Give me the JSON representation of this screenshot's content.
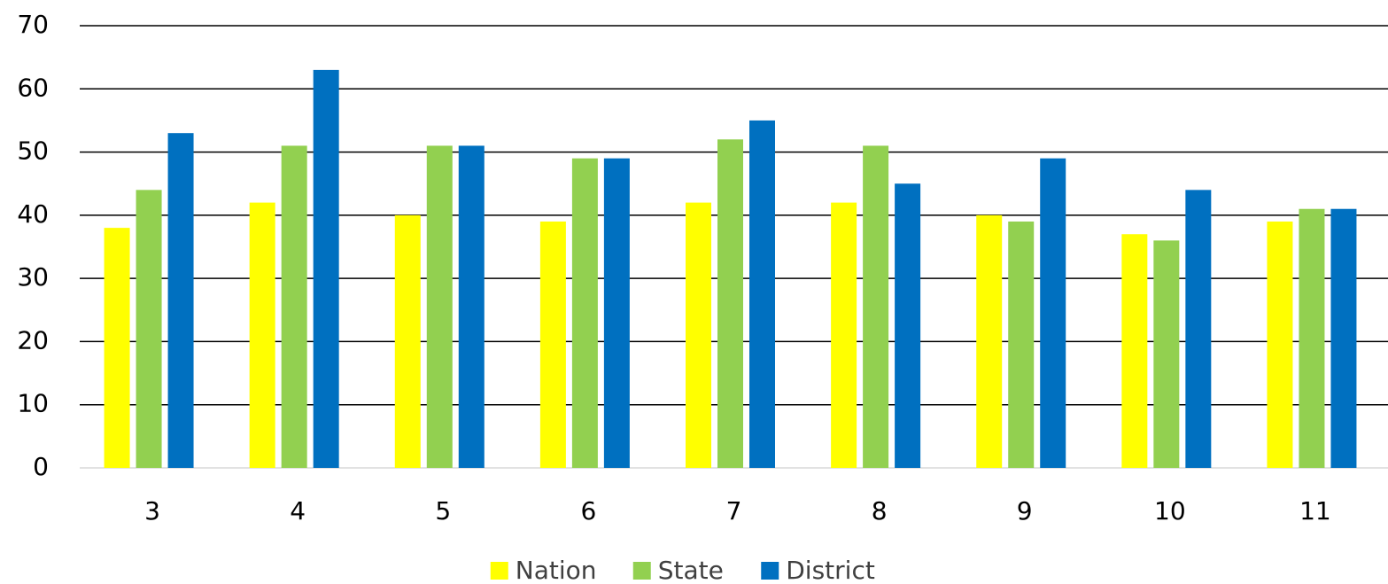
{
  "chart_data": {
    "type": "bar",
    "categories": [
      "3",
      "4",
      "5",
      "6",
      "7",
      "8",
      "9",
      "10",
      "11"
    ],
    "series": [
      {
        "name": "Nation",
        "color": "#ffff00",
        "values": [
          38,
          42,
          40,
          39,
          42,
          42,
          40,
          37,
          39
        ]
      },
      {
        "name": "State",
        "color": "#92d050",
        "values": [
          44,
          51,
          51,
          49,
          52,
          51,
          39,
          36,
          41
        ]
      },
      {
        "name": "District",
        "color": "#0070c0",
        "values": [
          53,
          63,
          51,
          49,
          55,
          45,
          49,
          44,
          41
        ]
      }
    ],
    "ylim": [
      0,
      70
    ],
    "yticks": [
      0,
      10,
      20,
      30,
      40,
      50,
      60,
      70
    ],
    "grid": true,
    "legend": "bottom"
  }
}
